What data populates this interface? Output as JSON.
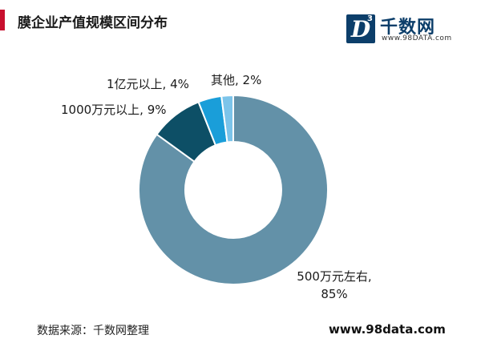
{
  "header": {
    "title": "膜企业产值规模区间分布"
  },
  "logo": {
    "name": "千数网",
    "url": "www.98DATA.com",
    "mark_letter": "D",
    "mark_sup": "3"
  },
  "footer": {
    "source": "数据来源：千数网整理",
    "site": "www.98data.com"
  },
  "chart_data": {
    "type": "pie",
    "donut": true,
    "categories": [
      "500万元左右",
      "1000万元以上",
      "1亿元以上",
      "其他"
    ],
    "values": [
      85,
      9,
      4,
      2
    ],
    "labels": [
      "500万元左右,\n85%",
      "1000万元以上, 9%",
      "1亿元以上, 4%",
      "其他, 2%"
    ],
    "colors": [
      "#6391a8",
      "#0d4f66",
      "#1a9ed9",
      "#7cc4ea"
    ]
  }
}
